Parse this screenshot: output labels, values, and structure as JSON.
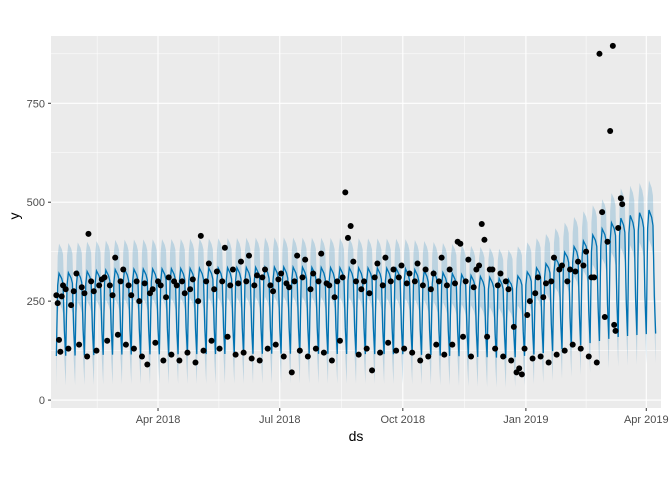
{
  "chart_data": {
    "type": "line",
    "title": "",
    "xlabel": "ds",
    "ylabel": "y",
    "xlim": [
      "2018-01-11",
      "2019-04-12"
    ],
    "ylim": [
      -20,
      920
    ],
    "x_ticks": [
      {
        "date": "2018-04-01",
        "label": "Apr 2018"
      },
      {
        "date": "2018-07-01",
        "label": "Jul 2018"
      },
      {
        "date": "2018-10-01",
        "label": "Oct 2018"
      },
      {
        "date": "2019-01-01",
        "label": "Jan 2019"
      },
      {
        "date": "2019-04-01",
        "label": "Apr 2019"
      }
    ],
    "y_ticks": [
      {
        "value": 0,
        "label": "0"
      },
      {
        "value": 250,
        "label": "250"
      },
      {
        "value": 500,
        "label": "500"
      },
      {
        "value": 750,
        "label": "750"
      }
    ],
    "grid": true,
    "legend": "none",
    "colors": {
      "panel": "#ebebeb",
      "grid_major": "#ffffff",
      "forecast_line": "#0072B2",
      "interval_band": "#0072B2",
      "observed_points": "#000000"
    },
    "series": [
      {
        "kind": "forecast",
        "forecast_start": "2018-01-15",
        "forecast_end": "2019-04-08",
        "trend_knots": [
          [
            "2018-01-15",
            252
          ],
          [
            "2018-03-01",
            260
          ],
          [
            "2018-07-01",
            265
          ],
          [
            "2018-10-01",
            262
          ],
          [
            "2018-12-20",
            240
          ],
          [
            "2019-01-15",
            270
          ],
          [
            "2019-02-15",
            320
          ],
          [
            "2019-03-10",
            360
          ],
          [
            "2019-04-05",
            380
          ]
        ],
        "weekly_peak": 70,
        "weekly_trough": -145,
        "interval_half_width": 75
      },
      {
        "kind": "observed",
        "points": [
          [
            "2018-01-15",
            265
          ],
          [
            "2018-01-16",
            245
          ],
          [
            "2018-01-17",
            152
          ],
          [
            "2018-01-18",
            122
          ],
          [
            "2018-01-19",
            262
          ],
          [
            "2018-01-20",
            290
          ],
          [
            "2018-01-22",
            280
          ],
          [
            "2018-01-24",
            130
          ],
          [
            "2018-01-26",
            240
          ],
          [
            "2018-01-28",
            275
          ],
          [
            "2018-01-30",
            320
          ],
          [
            "2018-02-01",
            140
          ],
          [
            "2018-02-03",
            285
          ],
          [
            "2018-02-05",
            270
          ],
          [
            "2018-02-07",
            110
          ],
          [
            "2018-02-08",
            420
          ],
          [
            "2018-02-10",
            300
          ],
          [
            "2018-02-12",
            275
          ],
          [
            "2018-02-14",
            125
          ],
          [
            "2018-02-16",
            290
          ],
          [
            "2018-02-18",
            305
          ],
          [
            "2018-02-20",
            310
          ],
          [
            "2018-02-22",
            150
          ],
          [
            "2018-02-24",
            290
          ],
          [
            "2018-02-26",
            265
          ],
          [
            "2018-02-28",
            360
          ],
          [
            "2018-03-02",
            165
          ],
          [
            "2018-03-04",
            300
          ],
          [
            "2018-03-06",
            330
          ],
          [
            "2018-03-08",
            140
          ],
          [
            "2018-03-10",
            290
          ],
          [
            "2018-03-12",
            265
          ],
          [
            "2018-03-14",
            130
          ],
          [
            "2018-03-16",
            300
          ],
          [
            "2018-03-18",
            250
          ],
          [
            "2018-03-20",
            110
          ],
          [
            "2018-03-22",
            295
          ],
          [
            "2018-03-24",
            90
          ],
          [
            "2018-03-26",
            270
          ],
          [
            "2018-03-28",
            280
          ],
          [
            "2018-03-30",
            145
          ],
          [
            "2018-04-01",
            300
          ],
          [
            "2018-04-03",
            290
          ],
          [
            "2018-04-05",
            100
          ],
          [
            "2018-04-07",
            260
          ],
          [
            "2018-04-09",
            310
          ],
          [
            "2018-04-11",
            115
          ],
          [
            "2018-04-13",
            300
          ],
          [
            "2018-04-15",
            290
          ],
          [
            "2018-04-17",
            100
          ],
          [
            "2018-04-19",
            300
          ],
          [
            "2018-04-21",
            270
          ],
          [
            "2018-04-23",
            120
          ],
          [
            "2018-04-25",
            280
          ],
          [
            "2018-04-27",
            305
          ],
          [
            "2018-04-29",
            95
          ],
          [
            "2018-05-01",
            250
          ],
          [
            "2018-05-03",
            415
          ],
          [
            "2018-05-05",
            125
          ],
          [
            "2018-05-07",
            300
          ],
          [
            "2018-05-09",
            345
          ],
          [
            "2018-05-11",
            150
          ],
          [
            "2018-05-13",
            280
          ],
          [
            "2018-05-15",
            325
          ],
          [
            "2018-05-17",
            130
          ],
          [
            "2018-05-19",
            300
          ],
          [
            "2018-05-21",
            385
          ],
          [
            "2018-05-23",
            160
          ],
          [
            "2018-05-25",
            290
          ],
          [
            "2018-05-27",
            330
          ],
          [
            "2018-05-29",
            115
          ],
          [
            "2018-05-31",
            295
          ],
          [
            "2018-06-02",
            350
          ],
          [
            "2018-06-04",
            120
          ],
          [
            "2018-06-06",
            300
          ],
          [
            "2018-06-08",
            365
          ],
          [
            "2018-06-10",
            105
          ],
          [
            "2018-06-12",
            290
          ],
          [
            "2018-06-14",
            315
          ],
          [
            "2018-06-16",
            100
          ],
          [
            "2018-06-18",
            310
          ],
          [
            "2018-06-20",
            330
          ],
          [
            "2018-06-22",
            130
          ],
          [
            "2018-06-24",
            290
          ],
          [
            "2018-06-26",
            275
          ],
          [
            "2018-06-28",
            140
          ],
          [
            "2018-06-30",
            305
          ],
          [
            "2018-07-02",
            320
          ],
          [
            "2018-07-04",
            110
          ],
          [
            "2018-07-06",
            295
          ],
          [
            "2018-07-08",
            285
          ],
          [
            "2018-07-10",
            70
          ],
          [
            "2018-07-12",
            300
          ],
          [
            "2018-07-14",
            365
          ],
          [
            "2018-07-16",
            125
          ],
          [
            "2018-07-18",
            310
          ],
          [
            "2018-07-20",
            355
          ],
          [
            "2018-07-22",
            110
          ],
          [
            "2018-07-24",
            280
          ],
          [
            "2018-07-26",
            320
          ],
          [
            "2018-07-28",
            130
          ],
          [
            "2018-07-30",
            300
          ],
          [
            "2018-08-01",
            370
          ],
          [
            "2018-08-03",
            120
          ],
          [
            "2018-08-05",
            295
          ],
          [
            "2018-08-07",
            290
          ],
          [
            "2018-08-09",
            100
          ],
          [
            "2018-08-11",
            260
          ],
          [
            "2018-08-13",
            300
          ],
          [
            "2018-08-15",
            150
          ],
          [
            "2018-08-17",
            310
          ],
          [
            "2018-08-19",
            525
          ],
          [
            "2018-08-21",
            410
          ],
          [
            "2018-08-23",
            440
          ],
          [
            "2018-08-25",
            350
          ],
          [
            "2018-08-27",
            300
          ],
          [
            "2018-08-29",
            115
          ],
          [
            "2018-08-31",
            280
          ],
          [
            "2018-09-02",
            300
          ],
          [
            "2018-09-04",
            130
          ],
          [
            "2018-09-06",
            270
          ],
          [
            "2018-09-08",
            75
          ],
          [
            "2018-09-10",
            310
          ],
          [
            "2018-09-12",
            345
          ],
          [
            "2018-09-14",
            120
          ],
          [
            "2018-09-16",
            290
          ],
          [
            "2018-09-18",
            360
          ],
          [
            "2018-09-20",
            145
          ],
          [
            "2018-09-22",
            300
          ],
          [
            "2018-09-24",
            330
          ],
          [
            "2018-09-26",
            125
          ],
          [
            "2018-09-28",
            310
          ],
          [
            "2018-09-30",
            340
          ],
          [
            "2018-10-02",
            130
          ],
          [
            "2018-10-04",
            295
          ],
          [
            "2018-10-06",
            320
          ],
          [
            "2018-10-08",
            120
          ],
          [
            "2018-10-10",
            300
          ],
          [
            "2018-10-12",
            345
          ],
          [
            "2018-10-14",
            100
          ],
          [
            "2018-10-16",
            290
          ],
          [
            "2018-10-18",
            330
          ],
          [
            "2018-10-20",
            110
          ],
          [
            "2018-10-22",
            280
          ],
          [
            "2018-10-24",
            320
          ],
          [
            "2018-10-26",
            140
          ],
          [
            "2018-10-28",
            300
          ],
          [
            "2018-10-30",
            360
          ],
          [
            "2018-11-01",
            115
          ],
          [
            "2018-11-03",
            290
          ],
          [
            "2018-11-05",
            330
          ],
          [
            "2018-11-07",
            140
          ],
          [
            "2018-11-09",
            295
          ],
          [
            "2018-11-11",
            400
          ],
          [
            "2018-11-13",
            395
          ],
          [
            "2018-11-15",
            160
          ],
          [
            "2018-11-17",
            300
          ],
          [
            "2018-11-19",
            355
          ],
          [
            "2018-11-21",
            110
          ],
          [
            "2018-11-23",
            285
          ],
          [
            "2018-11-25",
            330
          ],
          [
            "2018-11-27",
            340
          ],
          [
            "2018-11-29",
            445
          ],
          [
            "2018-12-01",
            405
          ],
          [
            "2018-12-03",
            160
          ],
          [
            "2018-12-05",
            330
          ],
          [
            "2018-12-07",
            330
          ],
          [
            "2018-12-09",
            130
          ],
          [
            "2018-12-11",
            290
          ],
          [
            "2018-12-13",
            320
          ],
          [
            "2018-12-15",
            110
          ],
          [
            "2018-12-17",
            300
          ],
          [
            "2018-12-19",
            280
          ],
          [
            "2018-12-21",
            100
          ],
          [
            "2018-12-23",
            185
          ],
          [
            "2018-12-25",
            70
          ],
          [
            "2018-12-27",
            80
          ],
          [
            "2018-12-29",
            65
          ],
          [
            "2018-12-31",
            130
          ],
          [
            "2019-01-02",
            215
          ],
          [
            "2019-01-04",
            250
          ],
          [
            "2019-01-06",
            105
          ],
          [
            "2019-01-08",
            270
          ],
          [
            "2019-01-10",
            310
          ],
          [
            "2019-01-12",
            110
          ],
          [
            "2019-01-14",
            260
          ],
          [
            "2019-01-16",
            295
          ],
          [
            "2019-01-18",
            95
          ],
          [
            "2019-01-20",
            300
          ],
          [
            "2019-01-22",
            360
          ],
          [
            "2019-01-24",
            115
          ],
          [
            "2019-01-26",
            330
          ],
          [
            "2019-01-28",
            340
          ],
          [
            "2019-01-30",
            125
          ],
          [
            "2019-02-01",
            300
          ],
          [
            "2019-02-03",
            330
          ],
          [
            "2019-02-05",
            140
          ],
          [
            "2019-02-07",
            325
          ],
          [
            "2019-02-09",
            350
          ],
          [
            "2019-02-11",
            130
          ],
          [
            "2019-02-13",
            340
          ],
          [
            "2019-02-15",
            375
          ],
          [
            "2019-02-17",
            110
          ],
          [
            "2019-02-19",
            310
          ],
          [
            "2019-02-21",
            310
          ],
          [
            "2019-02-23",
            95
          ],
          [
            "2019-02-25",
            875
          ],
          [
            "2019-02-27",
            475
          ],
          [
            "2019-03-01",
            210
          ],
          [
            "2019-03-03",
            400
          ],
          [
            "2019-03-05",
            680
          ],
          [
            "2019-03-07",
            895
          ],
          [
            "2019-03-08",
            190
          ],
          [
            "2019-03-09",
            175
          ],
          [
            "2019-03-11",
            435
          ],
          [
            "2019-03-13",
            510
          ],
          [
            "2019-03-14",
            495
          ]
        ]
      }
    ]
  }
}
